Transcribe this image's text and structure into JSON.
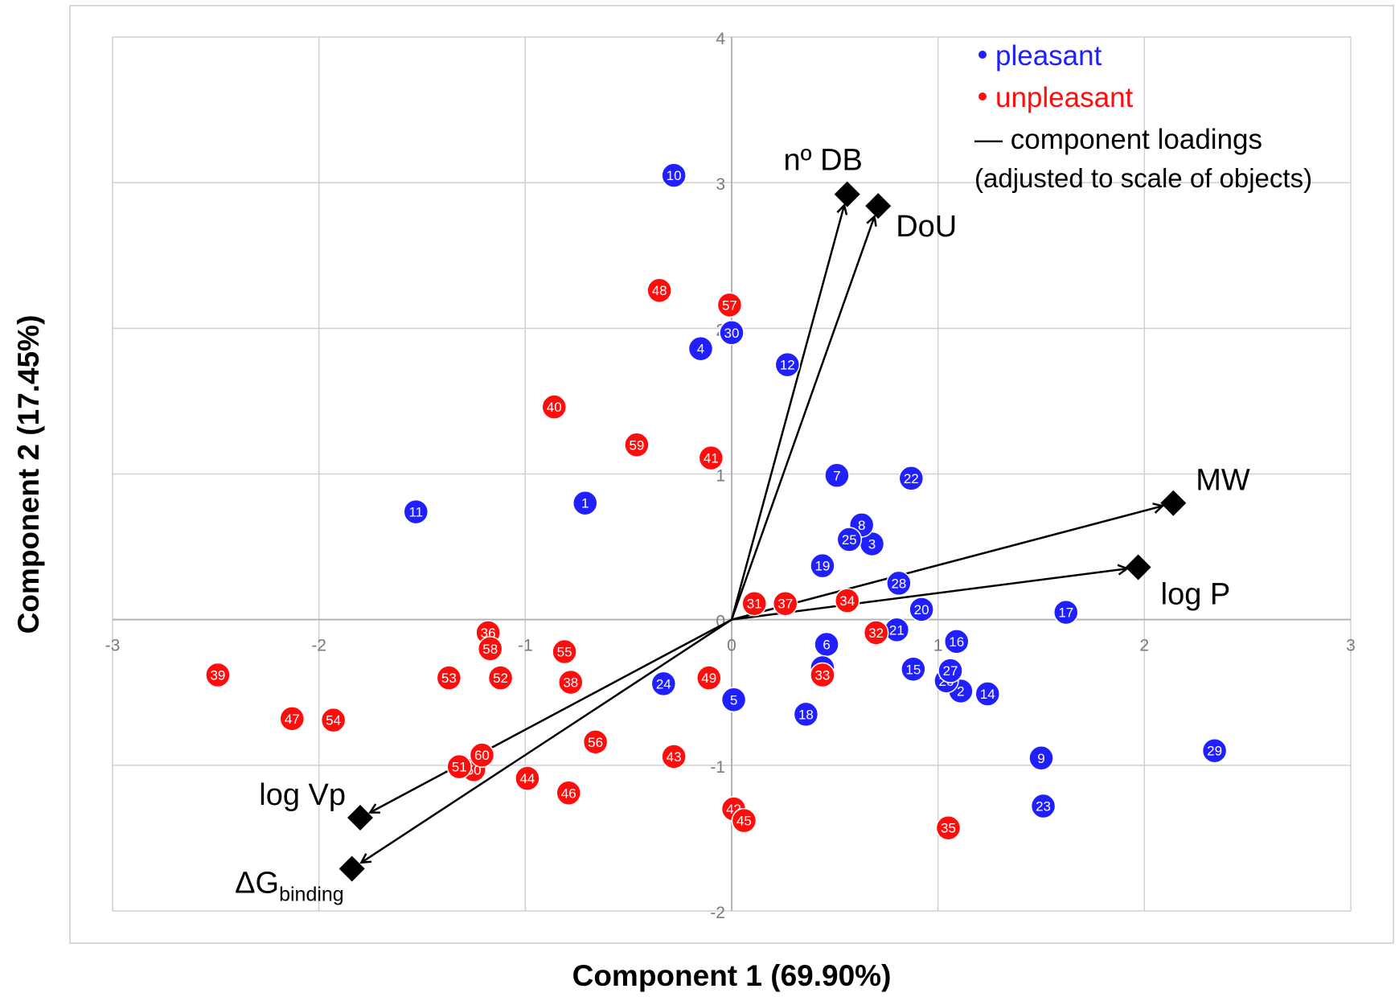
{
  "chart_data": {
    "type": "scatter",
    "xlabel": "Component 1 (69.90%)",
    "ylabel": "Component 2 (17.45%)",
    "xlim": [
      -3,
      3
    ],
    "ylim": [
      -2,
      4
    ],
    "xticks": [
      "-3",
      "-2",
      "-1",
      "0",
      "1",
      "2",
      "3"
    ],
    "yticks": [
      "-2",
      "-1",
      "0",
      "1",
      "2",
      "3",
      "4"
    ],
    "grid": true,
    "colors": {
      "pleasant": "#1f1fff",
      "unpleasant": "#ff0d0d",
      "loading": "#000000",
      "grid": "#d0d0d0",
      "frame": "#d9d9d9"
    },
    "legend": {
      "pleasant": "pleasant",
      "unpleasant": "unpleasant",
      "loadings_line1": "— component loadings",
      "loadings_line2": "(adjusted to scale of objects)"
    },
    "series": [
      {
        "name": "pleasant",
        "points": [
          {
            "id": "1",
            "x": -0.71,
            "y": 0.8
          },
          {
            "id": "2",
            "x": 1.11,
            "y": -0.49
          },
          {
            "id": "3",
            "x": 0.68,
            "y": 0.52
          },
          {
            "id": "4",
            "x": -0.15,
            "y": 1.86
          },
          {
            "id": "5",
            "x": 0.01,
            "y": -0.55
          },
          {
            "id": "6",
            "x": 0.46,
            "y": -0.17
          },
          {
            "id": "7",
            "x": 0.51,
            "y": 0.99
          },
          {
            "id": "8",
            "x": 0.63,
            "y": 0.65
          },
          {
            "id": "9",
            "x": 1.5,
            "y": -0.95
          },
          {
            "id": "10",
            "x": -0.28,
            "y": 3.05
          },
          {
            "id": "11",
            "x": -1.53,
            "y": 0.74
          },
          {
            "id": "12",
            "x": 0.27,
            "y": 1.75
          },
          {
            "id": "13",
            "x": 0.44,
            "y": -0.33
          },
          {
            "id": "14",
            "x": 1.24,
            "y": -0.51
          },
          {
            "id": "15",
            "x": 0.88,
            "y": -0.34
          },
          {
            "id": "16",
            "x": 1.09,
            "y": -0.15
          },
          {
            "id": "17",
            "x": 1.62,
            "y": 0.05
          },
          {
            "id": "18",
            "x": 0.36,
            "y": -0.65
          },
          {
            "id": "19",
            "x": 0.44,
            "y": 0.37
          },
          {
            "id": "20",
            "x": 0.92,
            "y": 0.07
          },
          {
            "id": "21",
            "x": 0.8,
            "y": -0.07
          },
          {
            "id": "22",
            "x": 0.87,
            "y": 0.97
          },
          {
            "id": "23",
            "x": 1.51,
            "y": -1.28
          },
          {
            "id": "24",
            "x": -0.33,
            "y": -0.44
          },
          {
            "id": "25",
            "x": 0.57,
            "y": 0.55
          },
          {
            "id": "26",
            "x": 1.04,
            "y": -0.42
          },
          {
            "id": "27",
            "x": 1.06,
            "y": -0.35
          },
          {
            "id": "28",
            "x": 0.81,
            "y": 0.25
          },
          {
            "id": "29",
            "x": 2.34,
            "y": -0.9
          },
          {
            "id": "30",
            "x": 0.0,
            "y": 1.97
          }
        ]
      },
      {
        "name": "unpleasant",
        "points": [
          {
            "id": "31",
            "x": 0.11,
            "y": 0.11
          },
          {
            "id": "32",
            "x": 0.7,
            "y": -0.09
          },
          {
            "id": "33",
            "x": 0.44,
            "y": -0.38
          },
          {
            "id": "34",
            "x": 0.56,
            "y": 0.13
          },
          {
            "id": "35",
            "x": 1.05,
            "y": -1.43
          },
          {
            "id": "36",
            "x": -1.18,
            "y": -0.09
          },
          {
            "id": "37",
            "x": 0.26,
            "y": 0.11
          },
          {
            "id": "38",
            "x": -0.78,
            "y": -0.43
          },
          {
            "id": "39",
            "x": -2.49,
            "y": -0.38
          },
          {
            "id": "40",
            "x": -0.86,
            "y": 1.46
          },
          {
            "id": "41",
            "x": -0.1,
            "y": 1.11
          },
          {
            "id": "42",
            "x": 0.01,
            "y": -1.3
          },
          {
            "id": "43",
            "x": -0.28,
            "y": -0.94
          },
          {
            "id": "44",
            "x": -0.99,
            "y": -1.09
          },
          {
            "id": "45",
            "x": 0.06,
            "y": -1.38
          },
          {
            "id": "46",
            "x": -0.79,
            "y": -1.19
          },
          {
            "id": "47",
            "x": -2.13,
            "y": -0.68
          },
          {
            "id": "48",
            "x": -0.35,
            "y": 2.26
          },
          {
            "id": "49",
            "x": -0.11,
            "y": -0.4
          },
          {
            "id": "50",
            "x": -1.25,
            "y": -1.03
          },
          {
            "id": "51",
            "x": -1.32,
            "y": -1.01
          },
          {
            "id": "52",
            "x": -1.12,
            "y": -0.4
          },
          {
            "id": "53",
            "x": -1.37,
            "y": -0.4
          },
          {
            "id": "54",
            "x": -1.93,
            "y": -0.69
          },
          {
            "id": "55",
            "x": -0.81,
            "y": -0.22
          },
          {
            "id": "56",
            "x": -0.66,
            "y": -0.84
          },
          {
            "id": "57",
            "x": -0.01,
            "y": 2.16
          },
          {
            "id": "58",
            "x": -1.17,
            "y": -0.2
          },
          {
            "id": "59",
            "x": -0.46,
            "y": 1.2
          },
          {
            "id": "60",
            "x": -1.21,
            "y": -0.93
          }
        ]
      }
    ],
    "loadings": [
      {
        "name": "nº DB",
        "x": 0.56,
        "y": 2.92
      },
      {
        "name": "DoU",
        "x": 0.71,
        "y": 2.84
      },
      {
        "name": "MW",
        "x": 2.14,
        "y": 0.8
      },
      {
        "name": "log P",
        "x": 1.97,
        "y": 0.36
      },
      {
        "name": "log Vp",
        "x": -1.8,
        "y": -1.36
      },
      {
        "name": "ΔG",
        "subscript": "binding",
        "x": -1.84,
        "y": -1.71
      }
    ]
  }
}
